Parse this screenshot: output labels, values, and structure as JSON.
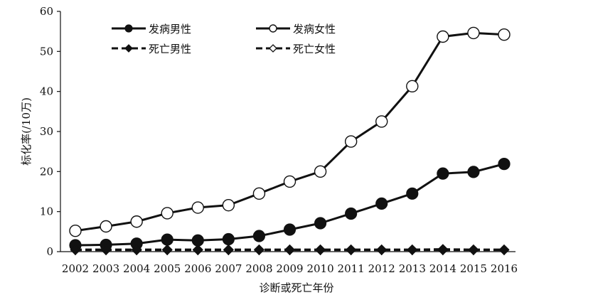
{
  "chart_data": {
    "type": "line",
    "xlabel": "诊断或死亡年份",
    "ylabel": "标化率(/10万)",
    "ylim": [
      0,
      60
    ],
    "yticks": [
      0,
      10,
      20,
      30,
      40,
      50,
      60
    ],
    "grid": false,
    "legend": "top",
    "categories": [
      "2002",
      "2003",
      "2004",
      "2005",
      "2006",
      "2007",
      "2008",
      "2009",
      "2010",
      "2011",
      "2012",
      "2013",
      "2014",
      "2015",
      "2016"
    ],
    "series": [
      {
        "name": "发病男性",
        "style": "solid",
        "marker": "filled-circle",
        "values": [
          1.6,
          1.7,
          2.0,
          3.0,
          2.8,
          3.1,
          3.9,
          5.5,
          7.1,
          9.5,
          12.0,
          14.5,
          19.5,
          19.9,
          21.9
        ]
      },
      {
        "name": "发病女性",
        "style": "solid",
        "marker": "open-circle",
        "values": [
          5.2,
          6.3,
          7.5,
          9.6,
          11.0,
          11.6,
          14.5,
          17.5,
          20.0,
          27.5,
          32.5,
          41.3,
          53.7,
          54.6,
          54.2
        ]
      },
      {
        "name": "死亡男性",
        "style": "dashed",
        "marker": "filled-diamond",
        "values": [
          0.5,
          0.5,
          0.5,
          0.5,
          0.5,
          0.5,
          0.5,
          0.5,
          0.5,
          0.5,
          0.5,
          0.5,
          0.6,
          0.5,
          0.5
        ]
      },
      {
        "name": "死亡女性",
        "style": "dashed",
        "marker": "open-diamond",
        "values": [
          0.4,
          0.4,
          0.4,
          0.4,
          0.4,
          0.4,
          0.4,
          0.4,
          0.4,
          0.4,
          0.4,
          0.4,
          0.4,
          0.4,
          0.4
        ]
      }
    ]
  }
}
